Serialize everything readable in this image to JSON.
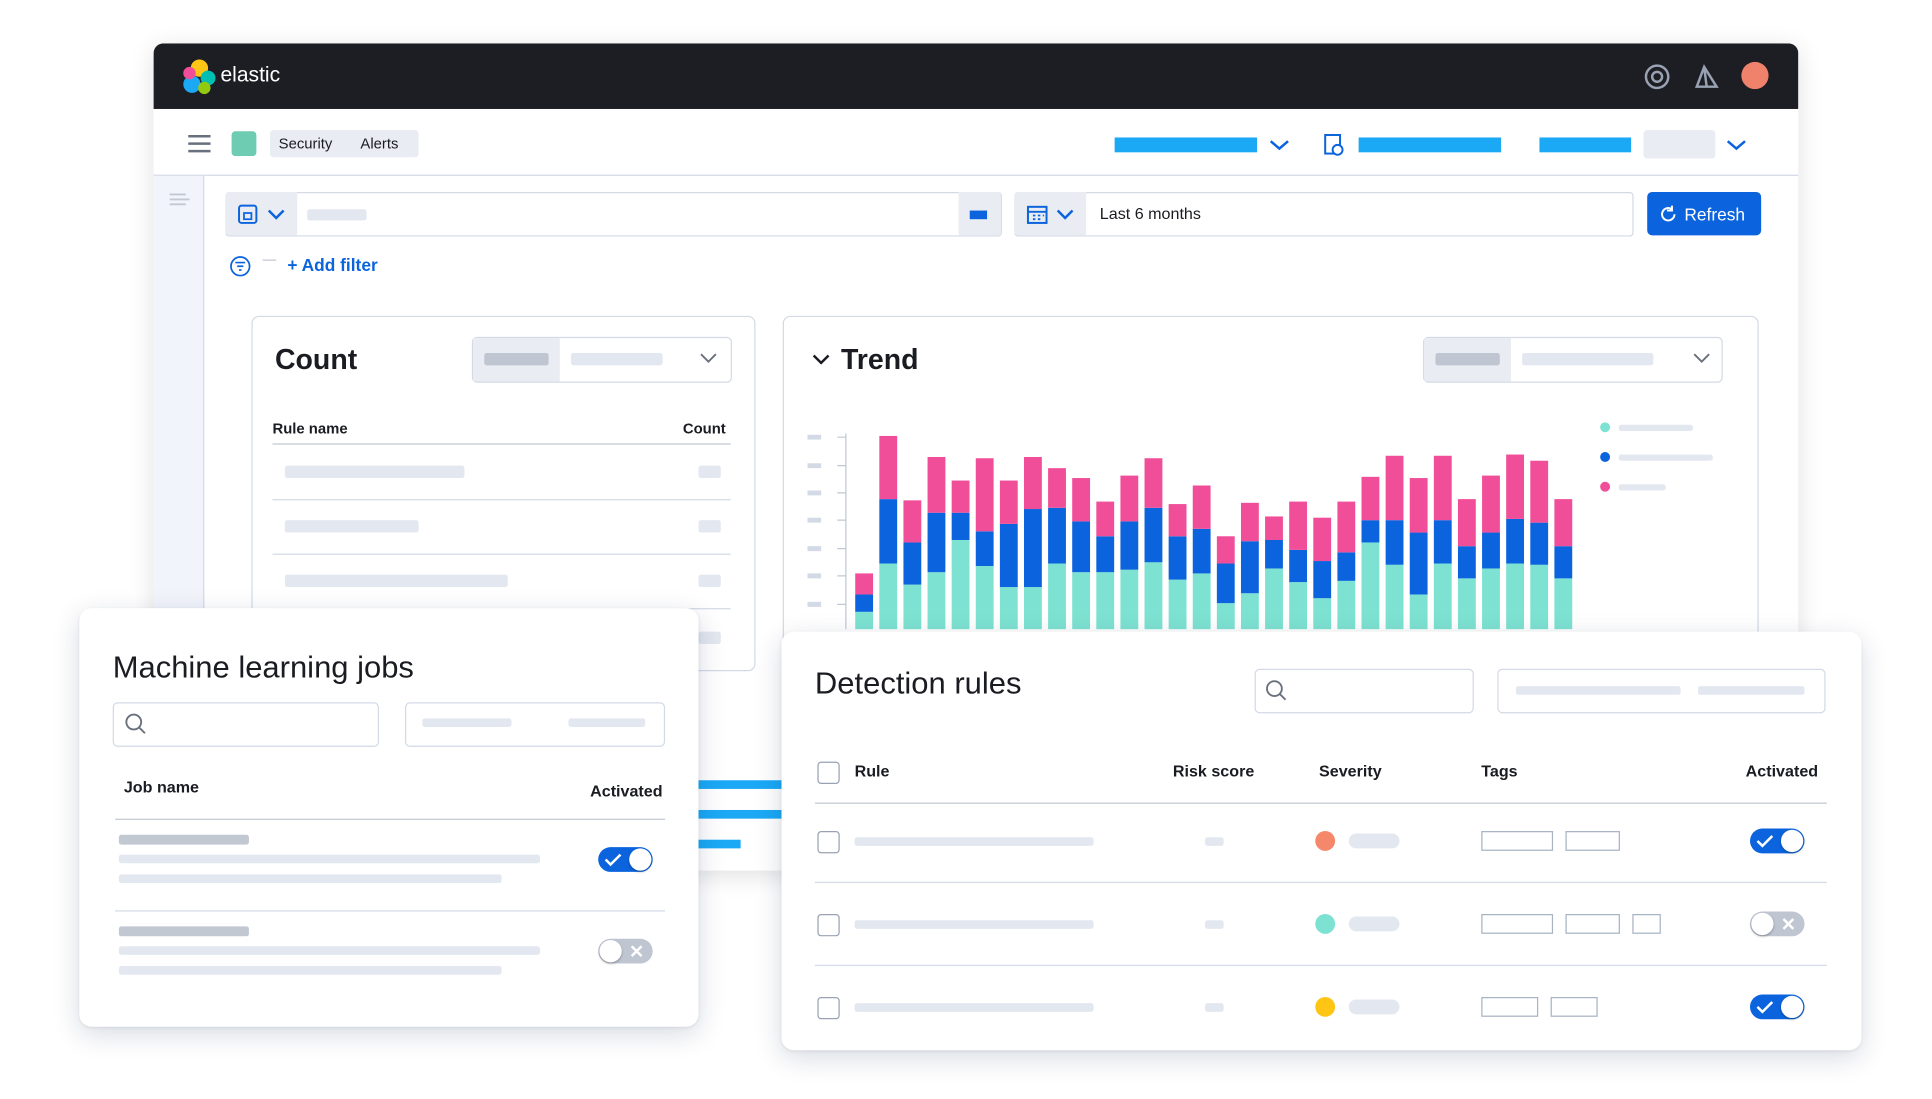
{
  "header": {
    "brand": "elastic",
    "breadcrumbs": [
      "Security",
      "Alerts"
    ]
  },
  "query_bar": {
    "date_range": "Last 6 months",
    "refresh": "Refresh",
    "add_filter": "+ Add filter"
  },
  "count_panel": {
    "title": "Count",
    "columns": [
      "Rule name",
      "Count"
    ]
  },
  "trend_panel": {
    "title": "Trend",
    "chart_data": {
      "type": "bar",
      "stacked": true,
      "series": [
        {
          "color": "#7de2d1",
          "values": [
            14,
            53,
            36,
            46,
            72,
            51,
            34,
            34,
            53,
            46,
            46,
            48,
            54,
            40,
            45,
            21,
            29,
            49,
            38,
            25,
            39,
            70,
            52,
            28,
            53,
            41,
            49,
            53,
            52,
            41
          ]
        },
        {
          "color": "#0b64dd",
          "values": [
            14,
            52,
            34,
            48,
            22,
            28,
            51,
            63,
            45,
            41,
            29,
            39,
            44,
            35,
            36,
            32,
            42,
            23,
            26,
            30,
            23,
            18,
            36,
            50,
            35,
            26,
            29,
            36,
            34,
            26
          ]
        },
        {
          "color": "#f04e98",
          "values": [
            17,
            51,
            34,
            45,
            26,
            59,
            35,
            42,
            32,
            35,
            28,
            37,
            40,
            26,
            35,
            22,
            31,
            19,
            39,
            35,
            41,
            35,
            52,
            44,
            52,
            38,
            46,
            52,
            50,
            38
          ]
        }
      ]
    }
  },
  "ml_jobs": {
    "title": "Machine learning jobs",
    "columns": [
      "Job name",
      "Activated"
    ]
  },
  "detection_rules": {
    "title": "Detection rules",
    "columns": [
      "Rule",
      "Risk score",
      "Severity",
      "Tags",
      "Activated"
    ]
  }
}
